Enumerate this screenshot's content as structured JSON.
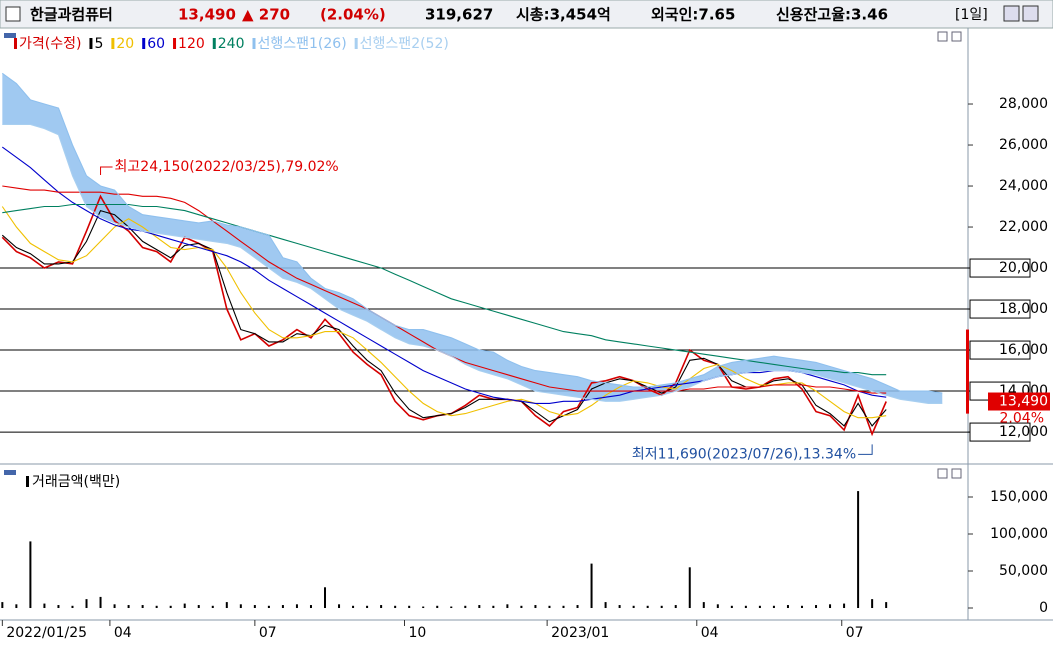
{
  "header": {
    "name": "한글과컴퓨터",
    "price": "13,490",
    "change": "▲ 270",
    "change_pct": "(2.04%)",
    "volume": "319,627",
    "market_cap": "시총:3,454억",
    "foreign": "외국인:7.65",
    "credit": "신용잔고율:3.46",
    "period": "[1일]",
    "last_change_pct": "2.04%"
  },
  "chart_data": [
    {
      "type": "line",
      "legend_title": "가격(수정)",
      "x": [
        0,
        6,
        12,
        18,
        24,
        30,
        36,
        42,
        48,
        54,
        60,
        66,
        72,
        78,
        84,
        90,
        96,
        102,
        108,
        114,
        120,
        126,
        132,
        138,
        144,
        150,
        156,
        162,
        168,
        174,
        180,
        186,
        192,
        198,
        204,
        210,
        216,
        222,
        228,
        234,
        240,
        246,
        252,
        258,
        264,
        270,
        276,
        282,
        288,
        294,
        300,
        306,
        312,
        318,
        324,
        330,
        336,
        342,
        348,
        354,
        360,
        366,
        372,
        378
      ],
      "xlim": [
        -1,
        413
      ],
      "xticks": [
        {
          "value": 0,
          "label": "2022/01/25"
        },
        {
          "value": 46,
          "label": "04"
        },
        {
          "value": 108,
          "label": "07"
        },
        {
          "value": 172,
          "label": "10"
        },
        {
          "value": 233,
          "label": "2023/01"
        },
        {
          "value": 297,
          "label": "04"
        },
        {
          "value": 359,
          "label": "07"
        }
      ],
      "ylim": [
        10540,
        31610
      ],
      "yticks": [
        {
          "value": 12000,
          "label": "12,000"
        },
        {
          "value": 14000,
          "label": "14,000"
        },
        {
          "value": 16000,
          "label": "16,000"
        },
        {
          "value": 18000,
          "label": "18,000"
        },
        {
          "value": 20000,
          "label": "20,000"
        },
        {
          "value": 22000,
          "label": "22,000"
        },
        {
          "value": 24000,
          "label": "24,000"
        },
        {
          "value": 26000,
          "label": "26,000"
        },
        {
          "value": 28000,
          "label": "28,000"
        }
      ],
      "hlines": [
        12000,
        14000,
        16000,
        18000,
        20000
      ],
      "series": [
        {
          "name": "가격(수정)",
          "color": "#d40000",
          "values": [
            21500,
            20800,
            20500,
            20000,
            20300,
            20200,
            21800,
            23500,
            22300,
            21800,
            21000,
            20800,
            20300,
            21500,
            21200,
            20800,
            18000,
            16500,
            16800,
            16200,
            16500,
            17000,
            16600,
            17500,
            16800,
            15900,
            15300,
            14800,
            13500,
            12800,
            12600,
            12800,
            12900,
            13300,
            13800,
            13600,
            13600,
            13500,
            12800,
            12300,
            13000,
            13200,
            14400,
            14500,
            14700,
            14500,
            14100,
            13800,
            14400,
            16000,
            15500,
            15300,
            14200,
            14100,
            14200,
            14600,
            14700,
            14100,
            13000,
            12800,
            12100,
            13800,
            11900,
            13490
          ]
        },
        {
          "name": "5",
          "color": "#000000",
          "values": [
            21600,
            21000,
            20700,
            20200,
            20200,
            20300,
            21300,
            22800,
            22600,
            22000,
            21300,
            20900,
            20500,
            21100,
            21200,
            20900,
            18800,
            17000,
            16800,
            16400,
            16400,
            16800,
            16700,
            17200,
            17000,
            16200,
            15500,
            15000,
            13900,
            13100,
            12700,
            12800,
            12900,
            13200,
            13600,
            13600,
            13600,
            13500,
            13000,
            12500,
            12800,
            13100,
            14100,
            14400,
            14600,
            14500,
            14200,
            13900,
            14200,
            15500,
            15600,
            15300,
            14500,
            14200,
            14200,
            14500,
            14600,
            14300,
            13300,
            12900,
            12300,
            13400,
            12300,
            13100
          ]
        },
        {
          "name": "20",
          "color": "#f0c000",
          "values": [
            23000,
            22000,
            21200,
            20800,
            20400,
            20300,
            20600,
            21300,
            22000,
            22400,
            22000,
            21500,
            21000,
            20900,
            21000,
            20900,
            20000,
            18800,
            17800,
            17000,
            16600,
            16600,
            16700,
            16900,
            16900,
            16600,
            16000,
            15400,
            14700,
            14000,
            13400,
            13000,
            12800,
            12900,
            13100,
            13300,
            13500,
            13600,
            13400,
            13000,
            12800,
            12900,
            13300,
            13800,
            14200,
            14500,
            14400,
            14200,
            14100,
            14600,
            15100,
            15300,
            15000,
            14600,
            14300,
            14300,
            14400,
            14400,
            14000,
            13500,
            13000,
            12700,
            12700,
            12800
          ]
        },
        {
          "name": "60",
          "color": "#0000cc",
          "values": [
            25900,
            25400,
            24900,
            24300,
            23700,
            23200,
            22800,
            22400,
            22100,
            21900,
            21800,
            21600,
            21400,
            21200,
            21000,
            20800,
            20600,
            20300,
            19900,
            19400,
            19000,
            18600,
            18200,
            17800,
            17400,
            17000,
            16600,
            16200,
            15800,
            15400,
            15000,
            14700,
            14400,
            14100,
            13900,
            13700,
            13600,
            13500,
            13400,
            13400,
            13500,
            13500,
            13600,
            13700,
            13800,
            14000,
            14100,
            14200,
            14300,
            14400,
            14500,
            14700,
            14800,
            14900,
            14900,
            15000,
            15000,
            14900,
            14700,
            14500,
            14300,
            14000,
            13800,
            13700
          ]
        },
        {
          "name": "120",
          "color": "#e00000",
          "values": [
            24000,
            23900,
            23800,
            23800,
            23700,
            23700,
            23700,
            23700,
            23600,
            23600,
            23500,
            23500,
            23400,
            23200,
            22800,
            22300,
            21800,
            21300,
            20800,
            20300,
            19900,
            19500,
            19200,
            18900,
            18600,
            18300,
            18000,
            17600,
            17200,
            16800,
            16400,
            16000,
            15700,
            15400,
            15200,
            15000,
            14800,
            14600,
            14400,
            14200,
            14100,
            14000,
            14000,
            14000,
            14000,
            14000,
            14000,
            14000,
            14000,
            14100,
            14100,
            14200,
            14200,
            14200,
            14200,
            14300,
            14300,
            14300,
            14200,
            14200,
            14100,
            14000,
            13900,
            13900
          ]
        },
        {
          "name": "240",
          "color": "#008060",
          "values": [
            22700,
            22800,
            22900,
            23000,
            23000,
            23100,
            23100,
            23100,
            23100,
            23100,
            23000,
            23000,
            22900,
            22800,
            22600,
            22400,
            22200,
            22000,
            21800,
            21600,
            21400,
            21200,
            21000,
            20800,
            20600,
            20400,
            20200,
            20000,
            19700,
            19400,
            19100,
            18800,
            18500,
            18300,
            18100,
            17900,
            17700,
            17500,
            17300,
            17100,
            16900,
            16800,
            16700,
            16500,
            16400,
            16300,
            16200,
            16100,
            16000,
            15900,
            15800,
            15700,
            15600,
            15500,
            15400,
            15300,
            15200,
            15100,
            15000,
            15000,
            14900,
            14900,
            14800,
            14800
          ]
        },
        {
          "name": "선행스팬1(26)",
          "color": "#8fc0ee",
          "span": true,
          "x": [
            0,
            6,
            12,
            18,
            24,
            30,
            36,
            42,
            48,
            54,
            60,
            66,
            72,
            78,
            84,
            90,
            96,
            102,
            108,
            114,
            120,
            126,
            132,
            138,
            144,
            150,
            156,
            162,
            168,
            174,
            180,
            186,
            192,
            198,
            204,
            210,
            216,
            222,
            228,
            234,
            240,
            246,
            252,
            258,
            264,
            270,
            276,
            282,
            288,
            294,
            300,
            306,
            312,
            318,
            324,
            330,
            336,
            342,
            348,
            354,
            360,
            366,
            372,
            378,
            384,
            390,
            396,
            402
          ],
          "values": [
            29500,
            29000,
            28200,
            28000,
            27800,
            26000,
            24500,
            24000,
            23800,
            23000,
            22600,
            22500,
            22400,
            22300,
            22200,
            22300,
            22100,
            22000,
            21800,
            21600,
            20500,
            20300,
            19500,
            19000,
            18800,
            18500,
            18000,
            17600,
            17200,
            17000,
            17000,
            16800,
            16600,
            16300,
            16000,
            15900,
            15500,
            15200,
            15000,
            14900,
            14800,
            14700,
            14500,
            14400,
            14300,
            14200,
            14200,
            14300,
            14400,
            14600,
            14800,
            15200,
            15400,
            15500,
            15600,
            15700,
            15600,
            15500,
            15400,
            15200,
            15000,
            14800,
            14600,
            14300,
            14000,
            14000,
            14000,
            13900
          ]
        },
        {
          "name": "선행스팬2(52)",
          "color": "#a8cff0",
          "span": true,
          "x": [
            0,
            6,
            12,
            18,
            24,
            30,
            36,
            42,
            48,
            54,
            60,
            66,
            72,
            78,
            84,
            90,
            96,
            102,
            108,
            114,
            120,
            126,
            132,
            138,
            144,
            150,
            156,
            162,
            168,
            174,
            180,
            186,
            192,
            198,
            204,
            210,
            216,
            222,
            228,
            234,
            240,
            246,
            252,
            258,
            264,
            270,
            276,
            282,
            288,
            294,
            300,
            306,
            312,
            318,
            324,
            330,
            336,
            342,
            348,
            354,
            360,
            366,
            372,
            378,
            384,
            390,
            396,
            402
          ],
          "values": [
            27000,
            27000,
            27000,
            26800,
            26500,
            24500,
            23000,
            22500,
            22200,
            22000,
            21800,
            21700,
            21600,
            21500,
            21400,
            21300,
            21200,
            21000,
            20500,
            20000,
            19500,
            19300,
            19000,
            18500,
            18000,
            17700,
            17400,
            17000,
            16600,
            16300,
            16200,
            16000,
            15700,
            15300,
            15000,
            14800,
            14600,
            14300,
            14000,
            13900,
            13800,
            13700,
            13600,
            13500,
            13500,
            13600,
            13700,
            13800,
            14000,
            14200,
            14500,
            14700,
            14800,
            14900,
            15000,
            15000,
            15000,
            14900,
            14800,
            14600,
            14400,
            14200,
            14000,
            13800,
            13600,
            13500,
            13400,
            13400
          ]
        }
      ],
      "annotations": [
        {
          "text": "최고24,150(2022/03/25),79.02%",
          "x": 42,
          "y": 24150,
          "color": "#e00000",
          "side": "above"
        },
        {
          "text": "최저11,690(2023/07/26),13.34%",
          "x": 372,
          "y": 11690,
          "color": "#2050a0",
          "side": "below"
        }
      ]
    },
    {
      "type": "bar",
      "title": "거래금액(백만)",
      "color": "#000000",
      "x": [
        0,
        6,
        12,
        18,
        24,
        30,
        36,
        42,
        48,
        54,
        60,
        66,
        72,
        78,
        84,
        90,
        96,
        102,
        108,
        114,
        120,
        126,
        132,
        138,
        144,
        150,
        156,
        162,
        168,
        174,
        180,
        186,
        192,
        198,
        204,
        210,
        216,
        222,
        228,
        234,
        240,
        246,
        252,
        258,
        264,
        270,
        276,
        282,
        288,
        294,
        300,
        306,
        312,
        318,
        324,
        330,
        336,
        342,
        348,
        354,
        360,
        366,
        372,
        378
      ],
      "xlim": [
        -1,
        413
      ],
      "values": [
        8000,
        5000,
        90000,
        6000,
        4000,
        3000,
        12000,
        15000,
        5000,
        4000,
        4000,
        3000,
        3000,
        6000,
        4000,
        3000,
        8000,
        5000,
        4000,
        3000,
        4000,
        5000,
        4000,
        28000,
        5000,
        3000,
        3000,
        4000,
        3000,
        3000,
        2000,
        3000,
        2000,
        3000,
        4000,
        3000,
        5000,
        3000,
        4000,
        3000,
        3000,
        4000,
        60000,
        8000,
        4000,
        3000,
        3000,
        3000,
        4000,
        55000,
        8000,
        5000,
        3000,
        3000,
        3000,
        3000,
        4000,
        3000,
        4000,
        5000,
        6000,
        158000,
        12000,
        8000
      ],
      "ylim": [
        -13500,
        189200
      ],
      "yticks": [
        0,
        {
          "value": 50000,
          "label": "50,000"
        },
        {
          "value": 100000,
          "label": "100,000"
        },
        {
          "value": 150000,
          "label": "150,000"
        }
      ]
    }
  ]
}
